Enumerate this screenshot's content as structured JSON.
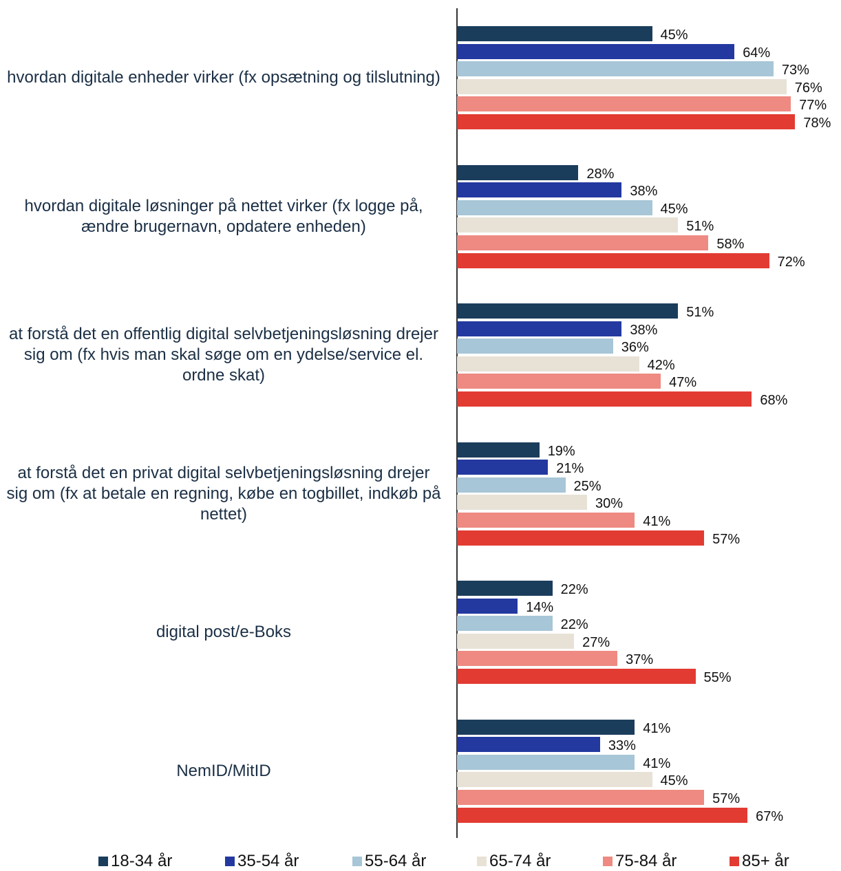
{
  "chart_data": {
    "type": "bar",
    "orientation": "horizontal",
    "categories": [
      "hvordan digitale enheder virker (fx opsætning og tilslutning)",
      "hvordan digitale løsninger på nettet virker (fx logge på, ændre brugernavn, opdatere enheden)",
      "at forstå det en offentlig digital selvbetjeningsløsning drejer sig om (fx hvis man skal søge om en ydelse/service el. ordne skat)",
      "at forstå det en privat digital selvbetjeningsløsning drejer sig om (fx at betale en regning, købe en togbillet, indkøb på nettet)",
      "digital post/e-Boks",
      "NemID/MitID"
    ],
    "series": [
      {
        "name": "18-34 år",
        "color": "#1b3d5c",
        "values": [
          45,
          28,
          51,
          19,
          22,
          41
        ],
        "value_labels": [
          "45%",
          "28%",
          "51%",
          "19%",
          "22%",
          "41%"
        ]
      },
      {
        "name": "35-54 år",
        "color": "#2339a0",
        "values": [
          64,
          38,
          38,
          21,
          14,
          33
        ],
        "value_labels": [
          "64%",
          "38%",
          "38%",
          "21%",
          "14%",
          "33%"
        ]
      },
      {
        "name": "55-64 år",
        "color": "#a7c6d7",
        "values": [
          73,
          45,
          36,
          25,
          22,
          41
        ],
        "value_labels": [
          "73%",
          "45%",
          "36%",
          "25%",
          "22%",
          "41%"
        ]
      },
      {
        "name": "65-74 år",
        "color": "#e8e1d6",
        "values": [
          76,
          51,
          42,
          30,
          27,
          45
        ],
        "value_labels": [
          "76%",
          "51%",
          "42%",
          "30%",
          "27%",
          "45%"
        ]
      },
      {
        "name": "75-84 år",
        "color": "#ee8a82",
        "values": [
          77,
          58,
          47,
          41,
          37,
          57
        ],
        "value_labels": [
          "77%",
          "58%",
          "47%",
          "41%",
          "37%",
          "57%"
        ]
      },
      {
        "name": "85+ år",
        "color": "#e23b32",
        "values": [
          78,
          72,
          68,
          57,
          55,
          67
        ],
        "value_labels": [
          "78%",
          "72%",
          "68%",
          "57%",
          "55%",
          "67%"
        ]
      }
    ],
    "legend": "bottom"
  }
}
